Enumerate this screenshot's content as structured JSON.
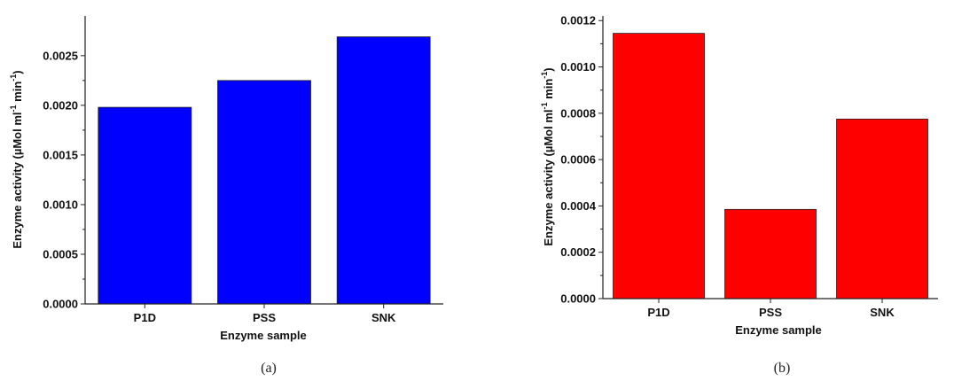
{
  "chart_data": [
    {
      "type": "bar",
      "panel_label": "(a)",
      "categories": [
        "P1D",
        "PSS",
        "SNK"
      ],
      "values": [
        0.00198,
        0.00225,
        0.00269
      ],
      "color": "#0000ff",
      "xlabel": "Enzyme sample",
      "ylabel_parts": [
        "Enzyme activity (µMol ml",
        "-1",
        " min",
        "-1",
        ")"
      ],
      "ylim": [
        0,
        0.0029
      ],
      "yticks": [
        0,
        0.0005,
        0.001,
        0.0015,
        0.002,
        0.0025
      ],
      "ytick_labels": [
        "0.0000",
        "0.0005",
        "0.0010",
        "0.0015",
        "0.0020",
        "0.0025"
      ],
      "grid": false
    },
    {
      "type": "bar",
      "panel_label": "(b)",
      "categories": [
        "P1D",
        "PSS",
        "SNK"
      ],
      "values": [
        0.001145,
        0.000385,
        0.000775
      ],
      "color": "#ff0000",
      "xlabel": "Enzyme sample",
      "ylabel_parts": [
        "Enzyme activity (µMol ml",
        "-1",
        " min",
        "-1",
        ")"
      ],
      "ylim": [
        0,
        0.00122
      ],
      "yticks": [
        0,
        0.0002,
        0.0004,
        0.0006,
        0.0008,
        0.001,
        0.0012
      ],
      "ytick_labels": [
        "0.0000",
        "0.0002",
        "0.0004",
        "0.0006",
        "0.0008",
        "0.0010",
        "0.0012"
      ],
      "grid": false
    }
  ]
}
